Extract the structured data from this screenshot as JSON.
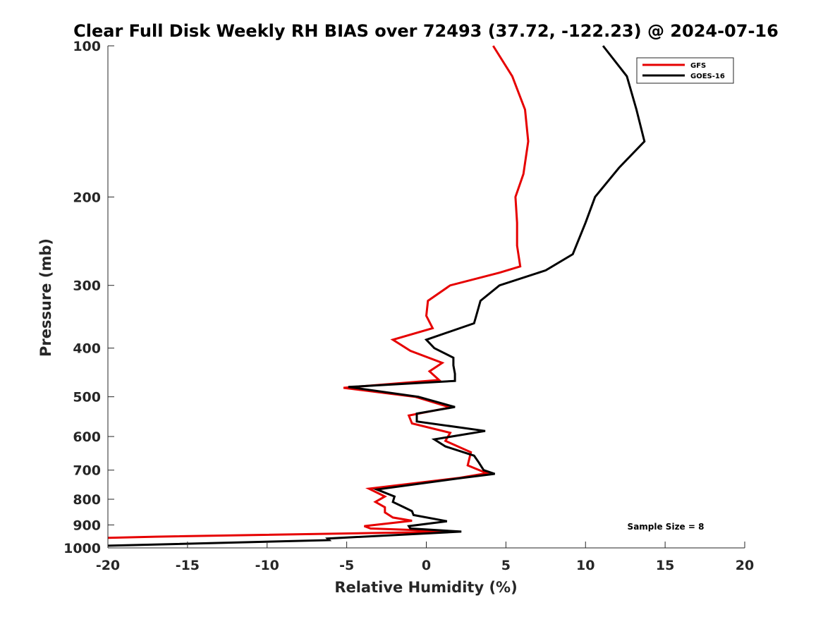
{
  "chart_data": {
    "type": "line",
    "title": "Clear Full Disk Weekly RH BIAS over 72493 (37.72, -122.23) @ 2024-07-16",
    "xlabel": "Relative Humidity (%)",
    "ylabel": "Pressure (mb)",
    "xlim": [
      -20,
      20
    ],
    "ylim": [
      1000,
      100
    ],
    "yscale": "log",
    "y_reversed": true,
    "xticks": [
      -20,
      -15,
      -10,
      -5,
      0,
      5,
      10,
      15,
      20
    ],
    "xtick_labels": [
      "-20",
      "-15",
      "-10",
      "-5",
      "0",
      "5",
      "10",
      "15",
      "20"
    ],
    "yticks": [
      100,
      200,
      300,
      400,
      500,
      600,
      700,
      800,
      900,
      1000
    ],
    "ytick_labels": [
      "100",
      "200",
      "300",
      "400",
      "500",
      "600",
      "700",
      "800",
      "900",
      "1000"
    ],
    "grid": false,
    "legend_position": "top-right",
    "annotation": "Sample Size = 8",
    "series": [
      {
        "name": "GFS",
        "color": "#e60000",
        "points": [
          [
            4.2,
            100
          ],
          [
            5.4,
            115
          ],
          [
            6.2,
            134
          ],
          [
            6.4,
            155
          ],
          [
            6.1,
            180
          ],
          [
            5.6,
            200
          ],
          [
            5.7,
            225
          ],
          [
            5.7,
            250
          ],
          [
            5.9,
            275
          ],
          [
            4.6,
            283
          ],
          [
            1.5,
            300
          ],
          [
            0.1,
            322
          ],
          [
            0.0,
            345
          ],
          [
            0.4,
            365
          ],
          [
            -2.1,
            385
          ],
          [
            -1.0,
            405
          ],
          [
            1.0,
            428
          ],
          [
            0.2,
            445
          ],
          [
            0.8,
            463
          ],
          [
            -5.2,
            480
          ],
          [
            -0.7,
            500
          ],
          [
            1.5,
            525
          ],
          [
            -1.1,
            545
          ],
          [
            -0.9,
            565
          ],
          [
            1.5,
            590
          ],
          [
            1.2,
            612
          ],
          [
            2.8,
            645
          ],
          [
            2.6,
            685
          ],
          [
            3.8,
            710
          ],
          [
            2.1,
            725
          ],
          [
            -3.6,
            762
          ],
          [
            -2.6,
            790
          ],
          [
            -3.2,
            810
          ],
          [
            -2.6,
            830
          ],
          [
            -2.6,
            850
          ],
          [
            -2.1,
            870
          ],
          [
            -0.9,
            883
          ],
          [
            -3.9,
            905
          ],
          [
            -3.5,
            915
          ],
          [
            2.0,
            928
          ],
          [
            -17.0,
            950
          ],
          [
            -20,
            955
          ]
        ]
      },
      {
        "name": "GOES-16",
        "color": "#000000",
        "points": [
          [
            11.1,
            100
          ],
          [
            12.6,
            115
          ],
          [
            13.2,
            134
          ],
          [
            13.7,
            155
          ],
          [
            12.1,
            175
          ],
          [
            10.6,
            200
          ],
          [
            10.0,
            225
          ],
          [
            9.2,
            260
          ],
          [
            7.5,
            280
          ],
          [
            4.6,
            300
          ],
          [
            3.4,
            322
          ],
          [
            3.1,
            348
          ],
          [
            3.0,
            357
          ],
          [
            0.0,
            385
          ],
          [
            0.5,
            400
          ],
          [
            1.7,
            418
          ],
          [
            1.7,
            433
          ],
          [
            1.8,
            450
          ],
          [
            1.8,
            465
          ],
          [
            -4.9,
            478
          ],
          [
            -0.5,
            500
          ],
          [
            1.8,
            524
          ],
          [
            -0.6,
            540
          ],
          [
            -0.6,
            560
          ],
          [
            3.7,
            585
          ],
          [
            0.5,
            608
          ],
          [
            1.2,
            628
          ],
          [
            3.0,
            655
          ],
          [
            3.3,
            676
          ],
          [
            3.6,
            700
          ],
          [
            4.3,
            712
          ],
          [
            2.3,
            725
          ],
          [
            -3.1,
            765
          ],
          [
            -2.0,
            790
          ],
          [
            -2.1,
            810
          ],
          [
            -1.4,
            830
          ],
          [
            -0.9,
            845
          ],
          [
            -0.8,
            860
          ],
          [
            1.3,
            885
          ],
          [
            -1.1,
            905
          ],
          [
            -1.0,
            915
          ],
          [
            2.2,
            928
          ],
          [
            -6.2,
            958
          ],
          [
            -6.1,
            965
          ],
          [
            -20,
            990
          ]
        ]
      }
    ]
  }
}
